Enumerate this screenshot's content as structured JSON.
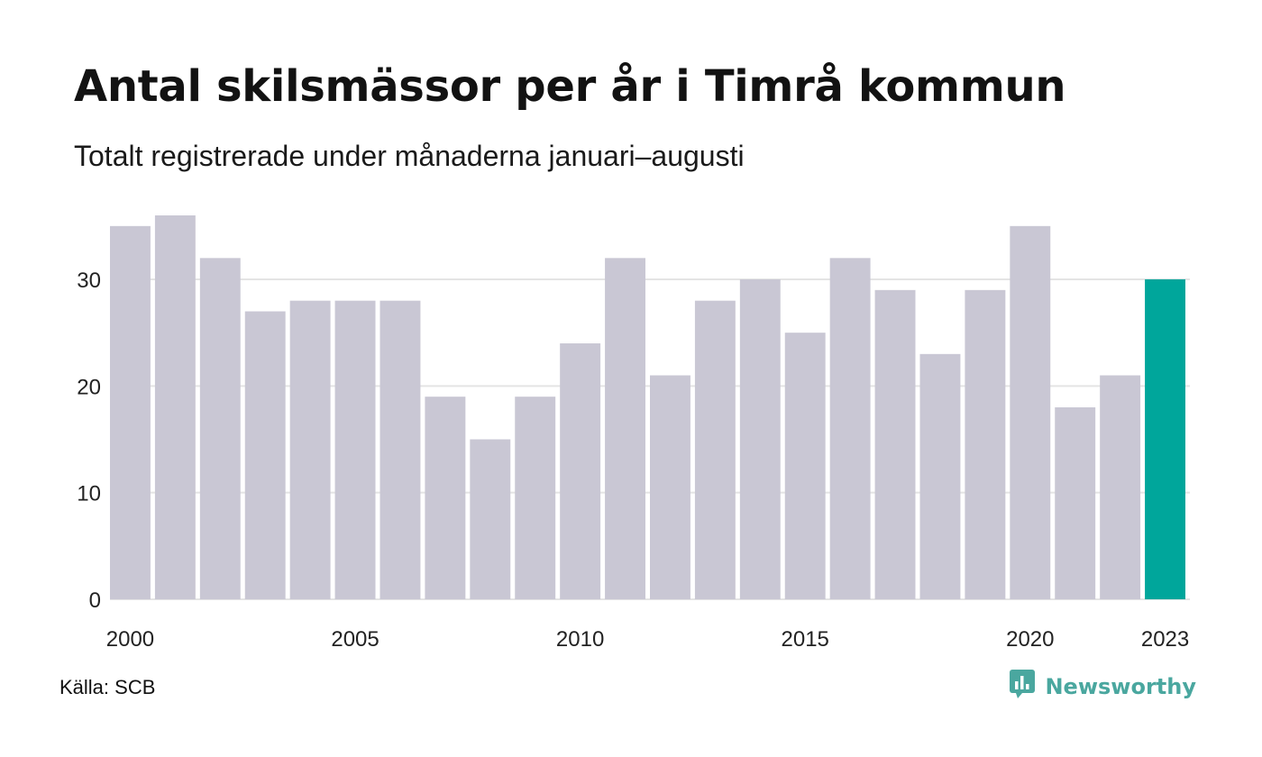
{
  "header": {
    "title": "Antal skilsmässor per år i Timrå kommun",
    "subtitle": "Totalt registrerade under månaderna januari–augusti"
  },
  "footer": {
    "source": "Källa: SCB",
    "brand": "Newsworthy",
    "brand_icon": "newsworthy-logo-icon"
  },
  "colors": {
    "bar": "#c9c7d4",
    "highlight": "#00a69b",
    "grid": "#e4e4e4",
    "brand": "#4aa79f"
  },
  "chart_data": {
    "type": "bar",
    "categories": [
      "2000",
      "2001",
      "2002",
      "2003",
      "2004",
      "2005",
      "2006",
      "2007",
      "2008",
      "2009",
      "2010",
      "2011",
      "2012",
      "2013",
      "2014",
      "2015",
      "2016",
      "2017",
      "2018",
      "2019",
      "2020",
      "2021",
      "2022",
      "2023"
    ],
    "values": [
      35,
      36,
      32,
      27,
      28,
      28,
      28,
      19,
      15,
      19,
      24,
      32,
      21,
      28,
      30,
      25,
      32,
      29,
      23,
      29,
      35,
      18,
      21,
      30
    ],
    "highlight_index": 23,
    "x_tick_labels": [
      "2000",
      "2005",
      "2010",
      "2015",
      "2020",
      "2023"
    ],
    "y_ticks": [
      0,
      10,
      20,
      30
    ],
    "ylim": [
      0,
      36
    ],
    "grid": true
  }
}
